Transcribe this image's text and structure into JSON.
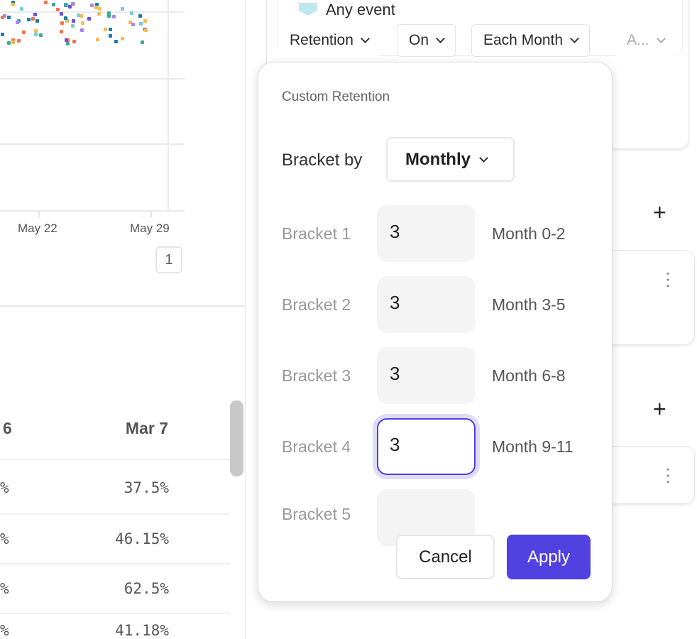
{
  "chart": {
    "x_tick_labels": [
      "May 22",
      "May 29"
    ],
    "page_number": "1",
    "dot_colors": [
      "#6fd0dc",
      "#f7b955",
      "#a685ec",
      "#15809e",
      "#ff6f4a",
      "#6b4ee6",
      "#3da89e"
    ]
  },
  "table": {
    "headers": [
      "6",
      "Mar 7"
    ],
    "rows": [
      [
        "%",
        "37.5%"
      ],
      [
        "%",
        "46.15%"
      ],
      [
        "%",
        "62.5%"
      ],
      [
        "%",
        "41.18%"
      ]
    ]
  },
  "query_card": {
    "event_label": "Any event",
    "filters": [
      "Retention",
      "On",
      "Each Month",
      "A..."
    ]
  },
  "custom_retention": {
    "title": "Custom Retention",
    "bracket_by_label": "Bracket by",
    "bracket_by_value": "Monthly",
    "brackets": [
      {
        "label": "Bracket 1",
        "value": "3",
        "range": "Month 0-2"
      },
      {
        "label": "Bracket 2",
        "value": "3",
        "range": "Month 3-5"
      },
      {
        "label": "Bracket 3",
        "value": "3",
        "range": "Month 6-8"
      },
      {
        "label": "Bracket 4",
        "value": "3",
        "range": "Month 9-11"
      },
      {
        "label": "Bracket 5",
        "value": "",
        "range": ""
      }
    ],
    "cancel_label": "Cancel",
    "apply_label": "Apply",
    "accent_color": "#5041e0"
  }
}
